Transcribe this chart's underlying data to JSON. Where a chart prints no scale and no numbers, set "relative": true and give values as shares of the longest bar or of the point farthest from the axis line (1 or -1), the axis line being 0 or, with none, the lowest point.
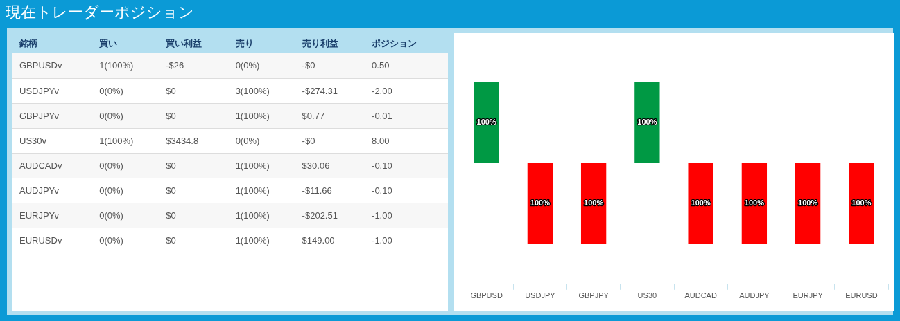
{
  "chart_data": [
    {
      "type": "other",
      "title": "現在トレーダーポジション",
      "categories": [
        "銘柄",
        "買い",
        "買い利益",
        "売り",
        "売り利益",
        "ポジション"
      ],
      "y_categories": [
        "GBPUSDv",
        "USDJPYv",
        "GBPJPYv",
        "US30v",
        "AUDCADv",
        "AUDJPYv",
        "EURJPYv",
        "EURUSDv"
      ],
      "cell_labels": [
        [
          "1(100%)",
          "-$26",
          "0(0%)",
          "-$0",
          "0.50"
        ],
        [
          "0(0%)",
          "$0",
          "3(100%)",
          "-$274.31",
          "-2.00"
        ],
        [
          "0(0%)",
          "$0",
          "1(100%)",
          "$0.77",
          "-0.01"
        ],
        [
          "1(100%)",
          "$3434.8",
          "0(0%)",
          "-$0",
          "8.00"
        ],
        [
          "0(0%)",
          "$0",
          "1(100%)",
          "$30.06",
          "-0.10"
        ],
        [
          "0(0%)",
          "$0",
          "1(100%)",
          "-$11.66",
          "-0.10"
        ],
        [
          "0(0%)",
          "$0",
          "1(100%)",
          "-$202.51",
          "-1.00"
        ],
        [
          "0(0%)",
          "$0",
          "1(100%)",
          "$149.00",
          "-1.00"
        ]
      ]
    },
    {
      "type": "bar",
      "relative": true,
      "categories": [
        "GBPUSD",
        "USDJPY",
        "GBPJPY",
        "US30",
        "AUDCAD",
        "AUDJPY",
        "EURJPY",
        "EURUSD"
      ],
      "values": [
        1,
        -1,
        -1,
        1,
        -1,
        -1,
        -1,
        -1
      ],
      "colors": [
        "#009944",
        "#ff0000",
        "#ff0000",
        "#009944",
        "#ff0000",
        "#ff0000",
        "#ff0000",
        "#ff0000"
      ],
      "annotations": [
        "100%",
        "100%",
        "100%",
        "100%",
        "100%",
        "100%",
        "100%",
        "100%"
      ],
      "grid": false,
      "legend": false
    }
  ]
}
